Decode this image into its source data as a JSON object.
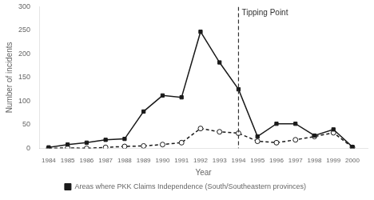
{
  "chart_data": {
    "type": "line",
    "xlabel": "Year",
    "ylabel": "Number of incidents",
    "x": [
      1984,
      1985,
      1986,
      1987,
      1988,
      1989,
      1990,
      1991,
      1992,
      1993,
      1994,
      1995,
      1996,
      1997,
      1998,
      1999,
      2000
    ],
    "series": [
      {
        "name": "Areas where PKK Claims Independence (South/Southeastern provinces)",
        "color": "#1a1a1a",
        "marker": "square",
        "line_style": "solid",
        "values": [
          2,
          8,
          12,
          18,
          20,
          78,
          112,
          108,
          247,
          182,
          125,
          25,
          52,
          52,
          27,
          40,
          3
        ]
      },
      {
        "color": "#1a1a1a",
        "marker": "open_circle",
        "line_style": "dashed",
        "values": [
          0,
          1,
          0,
          2,
          4,
          5,
          8,
          12,
          42,
          35,
          32,
          15,
          12,
          18,
          25,
          33,
          2
        ]
      }
    ],
    "xlim": [
      1983.5,
      2000.8
    ],
    "xticks": [
      1984,
      1985,
      1986,
      1987,
      1988,
      1989,
      1990,
      1991,
      1992,
      1993,
      1994,
      1995,
      1996,
      1997,
      1998,
      1999,
      2000
    ],
    "ylim": [
      0,
      300
    ],
    "yticks": [
      0,
      50,
      100,
      150,
      200,
      250,
      300
    ],
    "annotations": [
      {
        "x": 1994,
        "text": "Tipping Point",
        "line_style": "dashed"
      }
    ],
    "grid": false,
    "legend": "bottom"
  }
}
